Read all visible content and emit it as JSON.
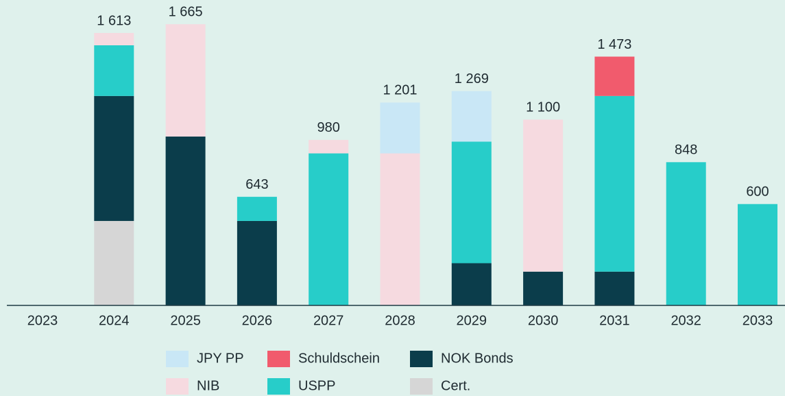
{
  "chart_data": {
    "type": "stacked_bar",
    "categories": [
      "2023",
      "2024",
      "2025",
      "2026",
      "2027",
      "2028",
      "2029",
      "2030",
      "2031",
      "2032",
      "2033"
    ],
    "series": [
      {
        "name": "JPY PP",
        "color": "#c9e7f6",
        "values": [
          null,
          null,
          null,
          null,
          null,
          301,
          299,
          null,
          null,
          null,
          null
        ]
      },
      {
        "name": "Schuldschein",
        "color": "#f15b6d",
        "values": [
          null,
          null,
          null,
          null,
          null,
          null,
          null,
          null,
          233,
          null,
          null
        ]
      },
      {
        "name": "NOK Bonds",
        "color": "#0b3d4b",
        "values": [
          null,
          740,
          1000,
          500,
          null,
          null,
          250,
          200,
          200,
          null,
          null
        ]
      },
      {
        "name": "NIB",
        "color": "#f6dae0",
        "values": [
          null,
          73,
          665,
          null,
          80,
          900,
          null,
          900,
          null,
          null,
          null
        ]
      },
      {
        "name": "USPP",
        "color": "#27cdc9",
        "values": [
          null,
          300,
          null,
          143,
          900,
          null,
          720,
          null,
          1040,
          848,
          600
        ]
      },
      {
        "name": "Cert.",
        "color": "#d6d6d6",
        "values": [
          null,
          500,
          null,
          null,
          null,
          null,
          null,
          null,
          null,
          null,
          null
        ]
      }
    ],
    "totals": [
      null,
      1613,
      1665,
      643,
      980,
      1201,
      1269,
      1100,
      1473,
      848,
      600
    ],
    "total_labels": [
      null,
      "1 613",
      "1 665",
      "643",
      "980",
      "1 201",
      "1 269",
      "1 100",
      "1 473",
      "848",
      "600"
    ]
  }
}
